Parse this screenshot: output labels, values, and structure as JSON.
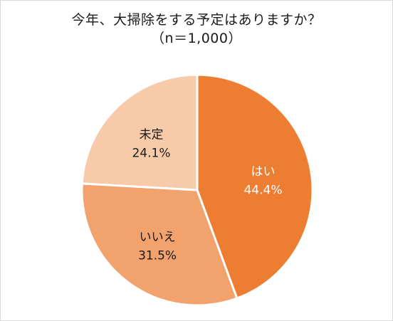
{
  "chart_data": {
    "type": "pie",
    "title": "今年、大掃除をする予定はありますか？",
    "subtitle": "（n＝1,000）",
    "slices": [
      {
        "name": "はい",
        "value": 44.4,
        "label": "44.4%",
        "color": "#ed7d31",
        "text_color": "#ffffff"
      },
      {
        "name": "いいえ",
        "value": 31.5,
        "label": "31.5%",
        "color": "#f1a26d",
        "text_color": "#1a1a1a"
      },
      {
        "name": "未定",
        "value": 24.1,
        "label": "24.1%",
        "color": "#f7caa9",
        "text_color": "#1a1a1a"
      }
    ],
    "start_angle_deg": 0,
    "direction": "clockwise",
    "border_color": "#ffffff",
    "legend": "none"
  }
}
